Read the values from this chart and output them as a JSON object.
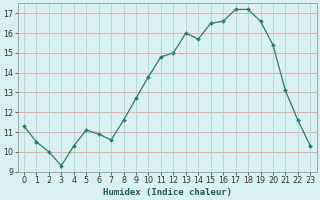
{
  "x": [
    0,
    1,
    2,
    3,
    4,
    5,
    6,
    7,
    8,
    9,
    10,
    11,
    12,
    13,
    14,
    15,
    16,
    17,
    18,
    19,
    20,
    21,
    22,
    23
  ],
  "y": [
    11.3,
    10.5,
    10.0,
    9.3,
    10.3,
    11.1,
    10.9,
    10.6,
    11.6,
    12.7,
    13.8,
    14.8,
    15.0,
    16.0,
    15.7,
    16.5,
    16.6,
    17.2,
    17.2,
    16.6,
    15.4,
    13.1,
    11.6,
    10.3
  ],
  "line_color": "#2d7a6e",
  "marker_color": "#2d7a6e",
  "bg_color": "#d8f0f0",
  "h_grid_color": "#e8a0a0",
  "v_grid_color": "#a8d8d8",
  "xlabel": "Humidex (Indice chaleur)",
  "ylim": [
    9,
    17.5
  ],
  "xlim": [
    -0.5,
    23.5
  ],
  "yticks": [
    9,
    10,
    11,
    12,
    13,
    14,
    15,
    16,
    17
  ],
  "xticks": [
    0,
    1,
    2,
    3,
    4,
    5,
    6,
    7,
    8,
    9,
    10,
    11,
    12,
    13,
    14,
    15,
    16,
    17,
    18,
    19,
    20,
    21,
    22,
    23
  ],
  "label_fontsize": 6.5,
  "tick_fontsize": 5.8,
  "xlabel_color": "#1a5c52"
}
